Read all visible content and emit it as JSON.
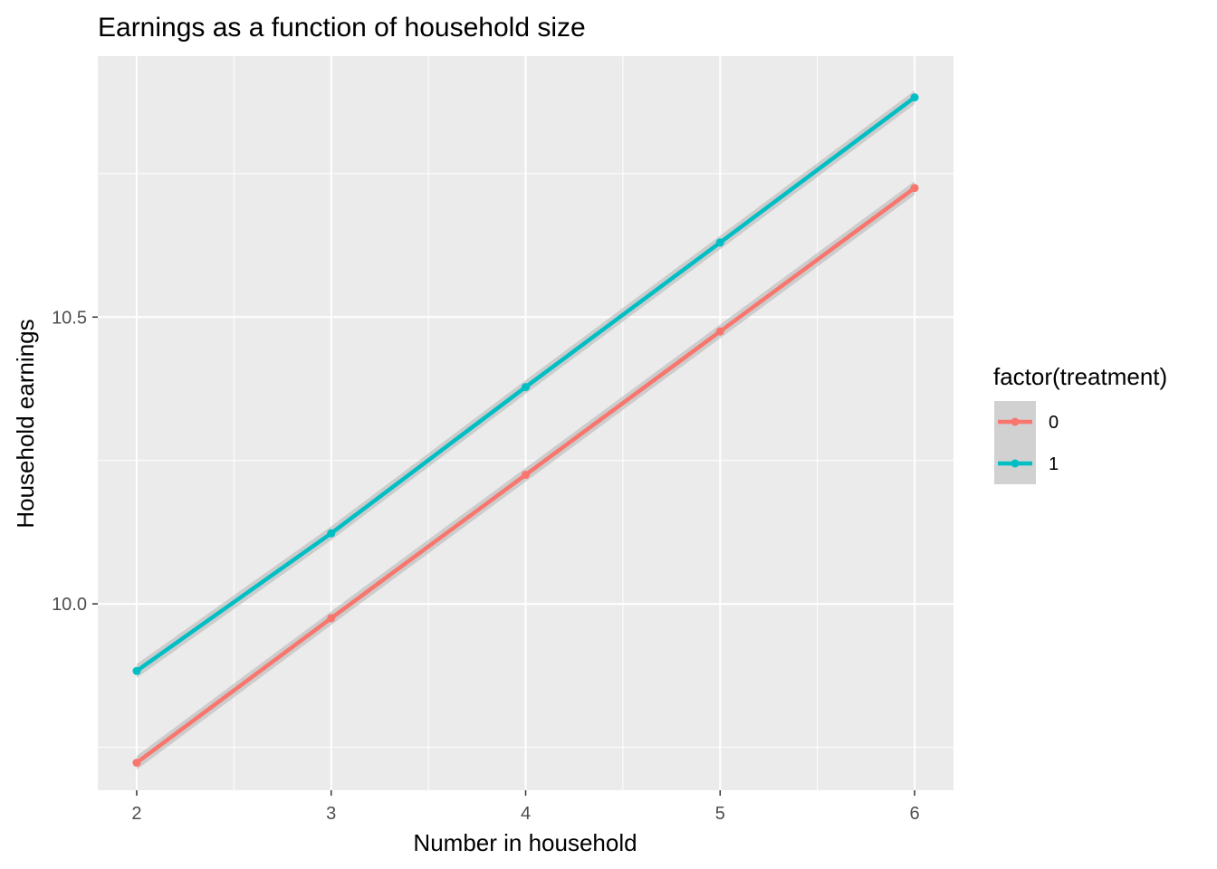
{
  "chart_data": {
    "type": "line",
    "title": "Earnings as a function of household size",
    "xlabel": "Number in household",
    "ylabel": "Household earnings",
    "x": [
      2,
      3,
      4,
      5,
      6
    ],
    "xlim": [
      1.8,
      6.2
    ],
    "ylim": [
      9.675,
      10.955
    ],
    "x_ticks": [
      2,
      3,
      4,
      5,
      6
    ],
    "y_ticks": [
      10.0,
      10.5
    ],
    "y_tick_labels": [
      "10.0",
      "10.5"
    ],
    "grid": true,
    "background": "#ebebeb",
    "legend": {
      "title": "factor(treatment)",
      "placement": "right"
    },
    "series": [
      {
        "name": "0",
        "color": "#f8766d",
        "values": [
          9.723,
          9.975,
          10.225,
          10.475,
          10.725
        ]
      },
      {
        "name": "1",
        "color": "#00bfc4",
        "values": [
          9.883,
          10.123,
          10.378,
          10.63,
          10.883
        ]
      }
    ],
    "confidence_band": {
      "color": "#b3b3b3",
      "opacity": 0.55,
      "halfwidth": 0.012
    }
  }
}
